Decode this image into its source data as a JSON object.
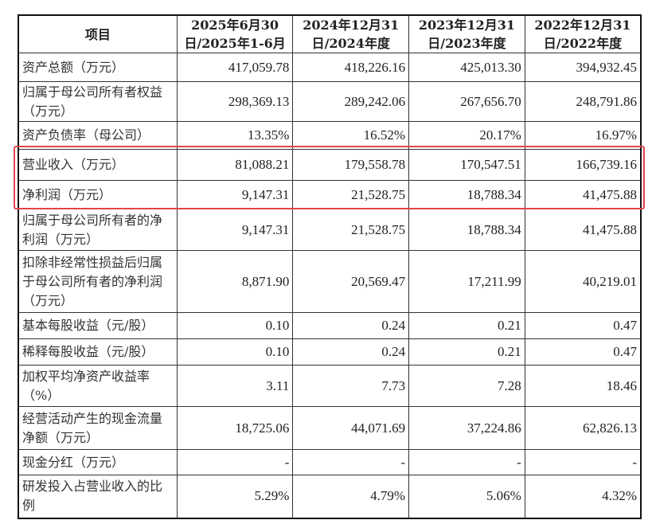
{
  "header": {
    "item": "项目",
    "columns": [
      "2025年6月30日/2025年1-6月",
      "2024年12月31日/2024年度",
      "2023年12月31日/2023年度",
      "2022年12月31日/2022年度"
    ]
  },
  "rows": [
    {
      "label": "资产总额（万元）",
      "values": [
        "417,059.78",
        "418,226.16",
        "425,013.30",
        "394,932.45"
      ]
    },
    {
      "label": "归属于母公司所有者权益（万元）",
      "values": [
        "298,369.13",
        "289,242.06",
        "267,656.70",
        "248,791.86"
      ]
    },
    {
      "label": "资产负债率（母公司）",
      "values": [
        "13.35%",
        "16.52%",
        "20.17%",
        "16.97%"
      ]
    },
    {
      "label": "营业收入（万元）",
      "values": [
        "81,088.21",
        "179,558.78",
        "170,547.51",
        "166,739.16"
      ]
    },
    {
      "label": "净利润（万元）",
      "values": [
        "9,147.31",
        "21,528.75",
        "18,788.34",
        "41,475.88"
      ]
    },
    {
      "label": "归属于母公司所有者的净利润（万元）",
      "values": [
        "9,147.31",
        "21,528.75",
        "18,788.34",
        "41,475.88"
      ]
    },
    {
      "label": "扣除非经常性损益后归属于母公司所有者的净利润（万元）",
      "values": [
        "8,871.90",
        "20,569.47",
        "17,211.99",
        "40,219.01"
      ]
    },
    {
      "label": "基本每股收益（元/股）",
      "values": [
        "0.10",
        "0.24",
        "0.21",
        "0.47"
      ]
    },
    {
      "label": "稀释每股收益（元/股）",
      "values": [
        "0.10",
        "0.24",
        "0.21",
        "0.47"
      ]
    },
    {
      "label": "加权平均净资产收益率（%）",
      "values": [
        "3.11",
        "7.73",
        "7.28",
        "18.46"
      ]
    },
    {
      "label": "经营活动产生的现金流量净额（万元）",
      "values": [
        "18,725.06",
        "44,071.69",
        "37,224.86",
        "62,826.13"
      ]
    },
    {
      "label": "现金分红（万元）",
      "values": [
        "-",
        "-",
        "-",
        "-"
      ]
    },
    {
      "label": "研发投入占营业收入的比例",
      "values": [
        "5.29%",
        "4.79%",
        "5.06%",
        "4.32%"
      ]
    }
  ],
  "highlight_color": "#e0454d"
}
